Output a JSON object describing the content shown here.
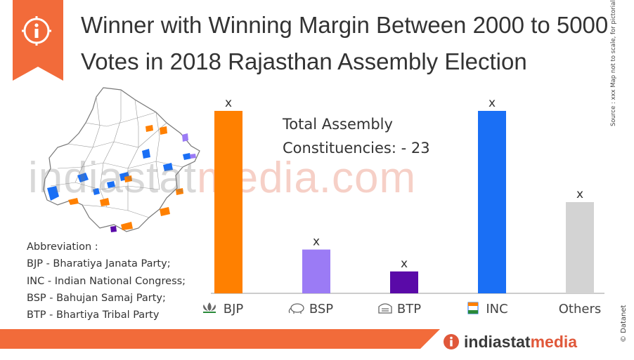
{
  "title": "Winner with Winning Margin Between 2000 to 5000 Votes in 2018 Rajasthan Assembly Election",
  "total_text": [
    "Total Assembly",
    "Constituencies: - 23"
  ],
  "watermark": {
    "part1": "indiastat",
    "part2": "media.com"
  },
  "abbreviations": [
    "Abbreviation :",
    "BJP - Bharatiya Janata Party;",
    "INC - Indian National Congress;",
    "BSP - Bahujan Samaj Party;",
    "BTP - Bhartiya Tribal Party"
  ],
  "side_note": "Source : xxx  Map not to scale, for pictorial reference only.",
  "side_brand": "© Datanet",
  "footer_brand": {
    "part1": "indiastat",
    "part2": "media"
  },
  "icons": {
    "badge": "info-icon",
    "brand": "info-icon"
  },
  "colors": {
    "accent": "#f26b3a",
    "BJP": "#ff8000",
    "BSP": "#9b7bf5",
    "BTP": "#5a0aa8",
    "INC": "#1a6ff5",
    "Others": "#d3d3d3"
  },
  "chart_data": {
    "type": "bar",
    "categories": [
      "BJP",
      "BSP",
      "BTP",
      "INC",
      "Others"
    ],
    "values": [
      10,
      2.4,
      1.2,
      10,
      5
    ],
    "data_labels": [
      "x",
      "x",
      "x",
      "x",
      "x"
    ],
    "colors": [
      "#ff8000",
      "#9b7bf5",
      "#5a0aa8",
      "#1a6ff5",
      "#d3d3d3"
    ],
    "category_icons": [
      "lotus-icon",
      "elephant-icon",
      "tribal-party-icon",
      "hand-icon",
      ""
    ],
    "ylim": [
      0,
      10
    ],
    "grid": false,
    "legend": "none"
  }
}
